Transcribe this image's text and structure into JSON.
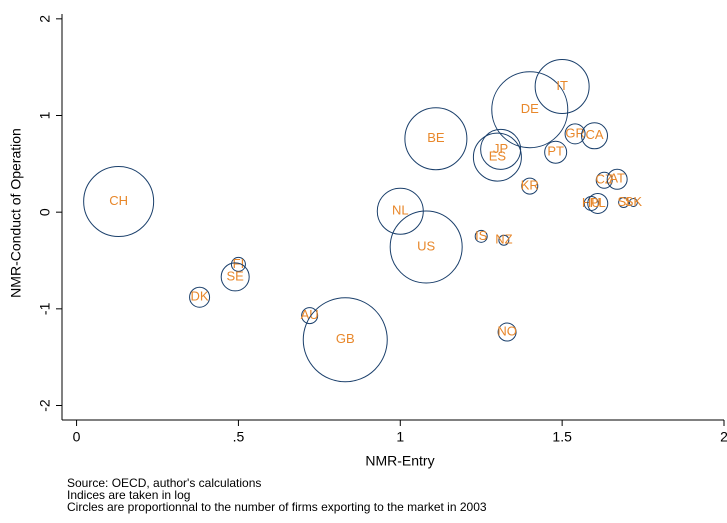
{
  "chart_data": {
    "type": "scatter",
    "xlabel": "NMR-Entry",
    "ylabel": "NMR-Conduct of Operation",
    "notes": [
      "Source: OECD, author's calculations",
      "Indices are taken in log",
      "Circles are proportionnal to the number of firms exporting to the market in 2003"
    ],
    "labels": [
      "CH",
      "DK",
      "FI",
      "SE",
      "AU",
      "GB",
      "NL",
      "US",
      "BE",
      "JP",
      "ES",
      "IS",
      "NZ",
      "NO",
      "KR",
      "DE",
      "IT",
      "PT",
      "GR",
      "CA",
      "CZ",
      "AT",
      "HU",
      "PL",
      "SI",
      "SK"
    ],
    "x": [
      0.13,
      0.38,
      0.5,
      0.49,
      0.72,
      0.83,
      1.0,
      1.08,
      1.11,
      1.31,
      1.3,
      1.25,
      1.32,
      1.33,
      1.4,
      1.4,
      1.5,
      1.48,
      1.54,
      1.6,
      1.63,
      1.67,
      1.59,
      1.61,
      1.69,
      1.72
    ],
    "y": [
      0.11,
      -0.88,
      -0.54,
      -0.67,
      -1.07,
      -1.32,
      0.01,
      -0.36,
      0.76,
      0.65,
      0.57,
      -0.25,
      -0.29,
      -1.24,
      0.27,
      1.06,
      1.3,
      0.62,
      0.81,
      0.79,
      0.33,
      0.34,
      0.09,
      0.09,
      0.1,
      0.1
    ],
    "sizes": [
      1225,
      100,
      49,
      196,
      64,
      1764,
      529,
      1296,
      961,
      400,
      576,
      36,
      25,
      81,
      64,
      1444,
      729,
      121,
      100,
      169,
      64,
      100,
      49,
      100,
      25,
      16
    ],
    "marker_color": "#1a3f6b",
    "label_color": "#e8872a",
    "xlim": [
      -0.045,
      2.0
    ],
    "ylim": [
      -2.15,
      2.05
    ],
    "xticks": [
      0,
      {
        "value": 0.5,
        "label": ".5"
      },
      1,
      1.5,
      2
    ],
    "yticks": [
      -2,
      -1,
      0,
      1,
      2
    ],
    "grid": false
  }
}
